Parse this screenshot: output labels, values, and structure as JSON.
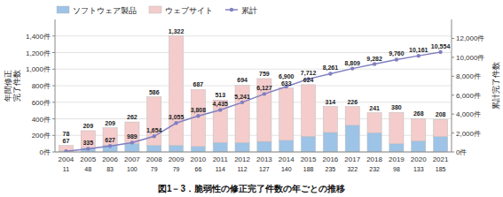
{
  "chart_data": {
    "type": "bar",
    "title": "図1－3．脆弱性の修正完了件数の年ごとの推移",
    "categories": [
      "2004",
      "2005",
      "2006",
      "2007",
      "2008",
      "2009",
      "2010",
      "2011",
      "2012",
      "2013",
      "2014",
      "2015",
      "2016",
      "2017",
      "2018",
      "2019",
      "2020",
      "2021"
    ],
    "series": [
      {
        "name": "ソフトウェア製品",
        "type": "bar",
        "color": "#9DC3E6",
        "values": [
          11,
          48,
          83,
          100,
          79,
          79,
          66,
          114,
          112,
          127,
          140,
          188,
          235,
          322,
          232,
          98,
          133,
          185
        ]
      },
      {
        "name": "ウェブサイト",
        "type": "bar",
        "color": "#F4CCCC",
        "values": [
          67,
          209,
          209,
          262,
          586,
          1322,
          687,
          513,
          694,
          759,
          633,
          624,
          314,
          226,
          241,
          380,
          268,
          208
        ],
        "value_labels": [
          "67",
          "209",
          "209",
          "262",
          "586",
          "1,322",
          "687",
          "513",
          "694",
          "759",
          "633",
          "624",
          "314",
          "226",
          "241",
          "380",
          "268",
          "208"
        ]
      },
      {
        "name": "累計",
        "type": "line",
        "axis": "y2",
        "color": "#8080C0",
        "marker": "circle",
        "values": [
          78,
          335,
          627,
          989,
          1654,
          3055,
          3808,
          4435,
          5241,
          6127,
          6900,
          7712,
          8261,
          8809,
          9282,
          9760,
          10161,
          10554
        ],
        "value_labels": [
          "78",
          "335",
          "627",
          "989",
          "1,654",
          "3,055",
          "3,808",
          "4,435",
          "5,241",
          "6,127",
          "6,900",
          "7,712",
          "8,261",
          "8,809",
          "9,282",
          "9,760",
          "10,161",
          "10,554"
        ]
      }
    ],
    "stacked": true,
    "data_labels": true,
    "grid": true,
    "legend": "upper left",
    "ylabel": "年間修正\n完了件数",
    "y2label": "累計完了件数",
    "ylim": [
      0,
      1600
    ],
    "yticks": [
      {
        "value": 0,
        "label": "0件"
      },
      {
        "value": 200,
        "label": "200件"
      },
      {
        "value": 400,
        "label": "400件"
      },
      {
        "value": 600,
        "label": "600件"
      },
      {
        "value": 800,
        "label": "800件"
      },
      {
        "value": 1000,
        "label": "1,000件"
      },
      {
        "value": 1200,
        "label": "1,200件"
      },
      {
        "value": 1400,
        "label": "1,400件"
      }
    ],
    "y2lim": [
      0,
      14000
    ],
    "y2ticks": [
      {
        "value": 0,
        "label": "0件"
      },
      {
        "value": 2000,
        "label": "2,000件"
      },
      {
        "value": 4000,
        "label": "4,000件"
      },
      {
        "value": 6000,
        "label": "6,000件"
      },
      {
        "value": 8000,
        "label": "8,000件"
      },
      {
        "value": 10000,
        "label": "10,000件"
      },
      {
        "value": 12000,
        "label": "12,000件"
      }
    ]
  }
}
